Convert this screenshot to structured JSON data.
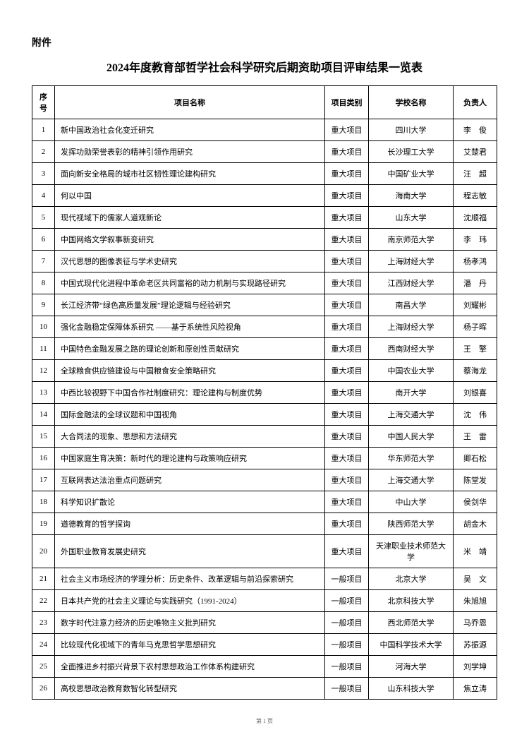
{
  "attachment_label": "附件",
  "title": "2024年度教育部哲学社会科学研究后期资助项目评审结果一览表",
  "headers": {
    "seq": "序号",
    "name": "项目名称",
    "category": "项目类别",
    "school": "学校名称",
    "person": "负责人"
  },
  "rows": [
    {
      "seq": "1",
      "name": "新中国政治社会化变迁研究",
      "category": "重大项目",
      "school": "四川大学",
      "person": "李　俊"
    },
    {
      "seq": "2",
      "name": "发挥功勋荣誉表彰的精神引领作用研究",
      "category": "重大项目",
      "school": "长沙理工大学",
      "person": "艾楚君"
    },
    {
      "seq": "3",
      "name": "面向新安全格局的城市社区韧性理论建构研究",
      "category": "重大项目",
      "school": "中国矿业大学",
      "person": "汪　超"
    },
    {
      "seq": "4",
      "name": "何以中国",
      "category": "重大项目",
      "school": "海南大学",
      "person": "程志敏"
    },
    {
      "seq": "5",
      "name": "现代视域下的儒家人道观新论",
      "category": "重大项目",
      "school": "山东大学",
      "person": "沈顺福"
    },
    {
      "seq": "6",
      "name": "中国网络文学叙事新变研究",
      "category": "重大项目",
      "school": "南京师范大学",
      "person": "李　玮"
    },
    {
      "seq": "7",
      "name": "汉代思想的图像表征与学术史研究",
      "category": "重大项目",
      "school": "上海财经大学",
      "person": "杨孝鸿"
    },
    {
      "seq": "8",
      "name": "中国式现代化进程中革命老区共同富裕的动力机制与实现路径研究",
      "category": "重大项目",
      "school": "江西财经大学",
      "person": "潘　丹"
    },
    {
      "seq": "9",
      "name": "长江经济带“绿色高质量发展”理论逻辑与经验研究",
      "category": "重大项目",
      "school": "南昌大学",
      "person": "刘耀彬"
    },
    {
      "seq": "10",
      "name": "强化金融稳定保障体系研究 ——基于系统性风险视角",
      "category": "重大项目",
      "school": "上海财经大学",
      "person": "杨子晖"
    },
    {
      "seq": "11",
      "name": "中国特色金融发展之路的理论创新和原创性贡献研究",
      "category": "重大项目",
      "school": "西南财经大学",
      "person": "王　擎"
    },
    {
      "seq": "12",
      "name": "全球粮食供应链建设与中国粮食安全策略研究",
      "category": "重大项目",
      "school": "中国农业大学",
      "person": "蔡海龙"
    },
    {
      "seq": "13",
      "name": "中西比较视野下中国合作社制度研究：理论建构与制度优势",
      "category": "重大项目",
      "school": "南开大学",
      "person": "刘银喜"
    },
    {
      "seq": "14",
      "name": "国际金融法的全球议题和中国视角",
      "category": "重大项目",
      "school": "上海交通大学",
      "person": "沈　伟"
    },
    {
      "seq": "15",
      "name": "大合同法的现象、思想和方法研究",
      "category": "重大项目",
      "school": "中国人民大学",
      "person": "王　雷"
    },
    {
      "seq": "16",
      "name": "中国家庭生育决策：新时代的理论建构与政策响应研究",
      "category": "重大项目",
      "school": "华东师范大学",
      "person": "卿石松"
    },
    {
      "seq": "17",
      "name": "互联网表达法治重点问题研究",
      "category": "重大项目",
      "school": "上海交通大学",
      "person": "陈堂发"
    },
    {
      "seq": "18",
      "name": "科学知识扩散论",
      "category": "重大项目",
      "school": "中山大学",
      "person": "侯剑华"
    },
    {
      "seq": "19",
      "name": "道德教育的哲学探询",
      "category": "重大项目",
      "school": "陕西师范大学",
      "person": "胡金木"
    },
    {
      "seq": "20",
      "name": "外国职业教育发展史研究",
      "category": "重大项目",
      "school": "天津职业技术师范大学",
      "person": "米　靖"
    },
    {
      "seq": "21",
      "name": "社会主义市场经济的学理分析：历史条件、改革逻辑与前沿探索研究",
      "category": "一般项目",
      "school": "北京大学",
      "person": "吴　文"
    },
    {
      "seq": "22",
      "name": "日本共产党的社会主义理论与实践研究（1991-2024）",
      "category": "一般项目",
      "school": "北京科技大学",
      "person": "朱旭旭"
    },
    {
      "seq": "23",
      "name": "数字时代注意力经济的历史唯物主义批判研究",
      "category": "一般项目",
      "school": "西北师范大学",
      "person": "马乔恩"
    },
    {
      "seq": "24",
      "name": "比较现代化视域下的青年马克思哲学思想研究",
      "category": "一般项目",
      "school": "中国科学技术大学",
      "person": "苏振源"
    },
    {
      "seq": "25",
      "name": "全面推进乡村振兴背景下农村思想政治工作体系构建研究",
      "category": "一般项目",
      "school": "河海大学",
      "person": "刘学坤"
    },
    {
      "seq": "26",
      "name": "高校思想政治教育数智化转型研究",
      "category": "一般项目",
      "school": "山东科技大学",
      "person": "焦立涛"
    }
  ],
  "page_indicator": "第 1 页"
}
